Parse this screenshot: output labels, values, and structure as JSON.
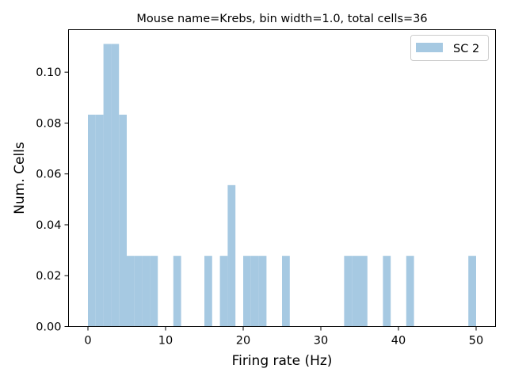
{
  "chart_data": {
    "type": "bar",
    "title": "Mouse name=Krebs, bin width=1.0, total cells=36",
    "xlabel": "Firing rate (Hz)",
    "ylabel": "Num. Cells",
    "xlim": [
      -2.5,
      52.5
    ],
    "ylim": [
      0,
      0.1167
    ],
    "xticks": [
      0,
      10,
      20,
      30,
      40,
      50
    ],
    "xtick_labels": [
      "0",
      "10",
      "20",
      "30",
      "40",
      "50"
    ],
    "yticks": [
      0.0,
      0.02,
      0.04,
      0.06,
      0.08,
      0.1
    ],
    "ytick_labels": [
      "0.00",
      "0.02",
      "0.04",
      "0.06",
      "0.08",
      "0.10"
    ],
    "grid": false,
    "legend_position": "top-right",
    "bin_width": 1.0,
    "series": [
      {
        "name": "SC 2",
        "color": "#a6c9e2",
        "bins": [
          {
            "x": 0,
            "value": 0.0833
          },
          {
            "x": 1,
            "value": 0.0833
          },
          {
            "x": 2,
            "value": 0.1111
          },
          {
            "x": 3,
            "value": 0.1111
          },
          {
            "x": 4,
            "value": 0.0833
          },
          {
            "x": 5,
            "value": 0.0278
          },
          {
            "x": 6,
            "value": 0.0278
          },
          {
            "x": 7,
            "value": 0.0278
          },
          {
            "x": 8,
            "value": 0.0278
          },
          {
            "x": 11,
            "value": 0.0278
          },
          {
            "x": 15,
            "value": 0.0278
          },
          {
            "x": 17,
            "value": 0.0278
          },
          {
            "x": 18,
            "value": 0.0556
          },
          {
            "x": 20,
            "value": 0.0278
          },
          {
            "x": 21,
            "value": 0.0278
          },
          {
            "x": 22,
            "value": 0.0278
          },
          {
            "x": 25,
            "value": 0.0278
          },
          {
            "x": 33,
            "value": 0.0278
          },
          {
            "x": 34,
            "value": 0.0278
          },
          {
            "x": 35,
            "value": 0.0278
          },
          {
            "x": 38,
            "value": 0.0278
          },
          {
            "x": 41,
            "value": 0.0278
          },
          {
            "x": 49,
            "value": 0.0278
          }
        ]
      }
    ]
  }
}
